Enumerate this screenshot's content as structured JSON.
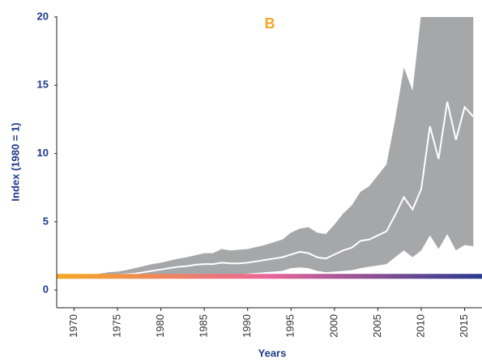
{
  "chart_data": {
    "type": "band-line",
    "title": "B",
    "title_color": "#f5a623",
    "x_label": "Years",
    "y_label": "Index (1980 = 1)",
    "x": [
      1968,
      1969,
      1970,
      1971,
      1972,
      1973,
      1974,
      1975,
      1976,
      1977,
      1978,
      1979,
      1980,
      1981,
      1982,
      1983,
      1984,
      1985,
      1986,
      1987,
      1988,
      1989,
      1990,
      1991,
      1992,
      1993,
      1994,
      1995,
      1996,
      1997,
      1998,
      1999,
      2000,
      2001,
      2002,
      2003,
      2004,
      2005,
      2006,
      2007,
      2008,
      2009,
      2010,
      2011,
      2012,
      2013,
      2014,
      2015,
      2016
    ],
    "band": {
      "color": "#a6a7a8",
      "upper": [
        1.05,
        1.05,
        1.05,
        1.05,
        1.1,
        1.2,
        1.3,
        1.35,
        1.45,
        1.6,
        1.75,
        1.9,
        2.0,
        2.15,
        2.3,
        2.4,
        2.55,
        2.7,
        2.7,
        3.0,
        2.9,
        2.95,
        3.0,
        3.15,
        3.3,
        3.5,
        3.7,
        4.2,
        4.5,
        4.6,
        4.2,
        4.1,
        4.8,
        5.6,
        6.2,
        7.2,
        7.6,
        8.4,
        9.2,
        12.5,
        16.3,
        14.6,
        20.3,
        22,
        22,
        22,
        22,
        22,
        22
      ],
      "lower": [
        0.95,
        0.95,
        0.95,
        0.95,
        0.95,
        0.85,
        0.85,
        0.85,
        0.87,
        0.9,
        0.92,
        0.94,
        0.95,
        0.98,
        1.0,
        1.05,
        1.08,
        1.1,
        1.1,
        1.15,
        1.15,
        1.15,
        1.2,
        1.25,
        1.3,
        1.35,
        1.4,
        1.6,
        1.65,
        1.6,
        1.4,
        1.3,
        1.35,
        1.4,
        1.45,
        1.6,
        1.7,
        1.8,
        1.9,
        2.4,
        2.9,
        2.4,
        2.9,
        4.0,
        3.0,
        4.1,
        2.9,
        3.3,
        3.2
      ]
    },
    "series": [
      {
        "color": "#ffffff",
        "values": [
          1.0,
          1.0,
          1.0,
          1.0,
          1.0,
          1.0,
          1.05,
          1.1,
          1.15,
          1.2,
          1.3,
          1.4,
          1.5,
          1.6,
          1.7,
          1.75,
          1.85,
          1.9,
          1.9,
          2.0,
          1.95,
          1.95,
          2.0,
          2.1,
          2.2,
          2.3,
          2.4,
          2.6,
          2.8,
          2.7,
          2.4,
          2.3,
          2.6,
          2.9,
          3.1,
          3.6,
          3.7,
          4.0,
          4.3,
          5.5,
          6.8,
          5.9,
          7.4,
          12.0,
          9.6,
          13.8,
          11.0,
          13.4,
          12.7
        ]
      }
    ],
    "hline": {
      "value": 1,
      "colors": [
        "#f5a623",
        "#e8669a",
        "#2b3a8f"
      ]
    },
    "xlim": [
      1968,
      2017
    ],
    "ylim": [
      -1.3,
      20
    ],
    "xticks": [
      1970,
      1975,
      1980,
      1985,
      1990,
      1995,
      2000,
      2005,
      2010,
      2015
    ],
    "yticks": [
      0,
      5,
      10,
      15,
      20
    ]
  }
}
